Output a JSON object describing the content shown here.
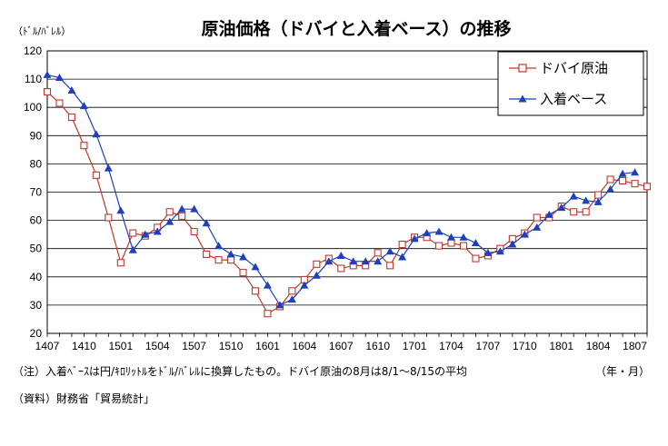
{
  "chart_data": {
    "type": "line",
    "title": "原油価格（ドバイと入着ベース）の推移",
    "ylabel": "（ﾄﾞﾙ/ﾊﾞﾚﾙ）",
    "xlabel": "（年・月）",
    "ylim": [
      20,
      120
    ],
    "y_ticks": [
      20,
      30,
      40,
      50,
      60,
      70,
      80,
      90,
      100,
      110,
      120
    ],
    "x_tick_labels": [
      "1407",
      "1410",
      "1501",
      "1504",
      "1507",
      "1510",
      "1601",
      "1604",
      "1607",
      "1610",
      "1701",
      "1704",
      "1707",
      "1710",
      "1801",
      "1804",
      "1807"
    ],
    "x_tick_every": 3,
    "grid": true,
    "legend_position": "top-right",
    "x": [
      "1407",
      "1408",
      "1409",
      "1410",
      "1411",
      "1412",
      "1501",
      "1502",
      "1503",
      "1504",
      "1505",
      "1506",
      "1507",
      "1508",
      "1509",
      "1510",
      "1511",
      "1512",
      "1601",
      "1602",
      "1603",
      "1604",
      "1605",
      "1606",
      "1607",
      "1608",
      "1609",
      "1610",
      "1611",
      "1612",
      "1701",
      "1702",
      "1703",
      "1704",
      "1705",
      "1706",
      "1707",
      "1708",
      "1709",
      "1710",
      "1711",
      "1712",
      "1801",
      "1802",
      "1803",
      "1804",
      "1805",
      "1806",
      "1807",
      "1808"
    ],
    "series": [
      {
        "name": "ドバイ原油",
        "color": "#c0392b",
        "marker": "square-open",
        "values": [
          105.5,
          101.5,
          96.5,
          86.5,
          76,
          61,
          45,
          55.5,
          54.5,
          57.5,
          63,
          61.5,
          56,
          48,
          46,
          46,
          41.5,
          35,
          27,
          29.5,
          35,
          39,
          44.5,
          46.5,
          43,
          44,
          44,
          48.5,
          44,
          51.5,
          54,
          54,
          51,
          52,
          51,
          46.5,
          47.5,
          50,
          53.5,
          55.5,
          61,
          61,
          65,
          63,
          63,
          69,
          74.5,
          74,
          73,
          72
        ]
      },
      {
        "name": "入着ベース",
        "color": "#1f3fbf",
        "marker": "triangle",
        "values": [
          111.5,
          110.5,
          106,
          100.5,
          90.5,
          78.5,
          63.5,
          49.5,
          55,
          56,
          59.5,
          64,
          64,
          59,
          51,
          48,
          47,
          43.5,
          37,
          30,
          32,
          37,
          40.5,
          45.5,
          47.5,
          45.5,
          45.5,
          45.5,
          49,
          47,
          53.5,
          55.5,
          56,
          54,
          54,
          52,
          48.5,
          49,
          51.5,
          55,
          57.5,
          62,
          64.5,
          68.5,
          67,
          66.5,
          71,
          76.5,
          77,
          null
        ]
      }
    ]
  },
  "notes": {
    "note1": "（注）入着ﾍﾞｰｽは円/ｷﾛﾘｯﾄﾙをﾄﾞﾙ/ﾊﾞﾚﾙに換算したもの。ドバイ原油の8月は8/1～8/15の平均",
    "note2": "（資料）財務省「貿易統計」"
  }
}
